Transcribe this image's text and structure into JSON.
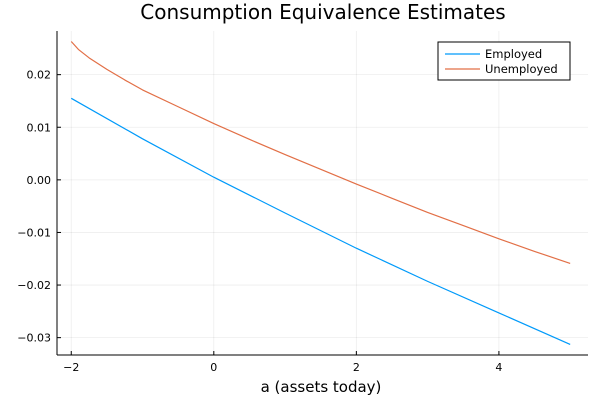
{
  "chart_data": {
    "type": "line",
    "title": "Consumption Equivalence Estimates",
    "xlabel": "a (assets today)",
    "ylabel": "",
    "xlim": [
      -2.2,
      5.25
    ],
    "ylim": [
      -0.0333,
      0.0283
    ],
    "xticks": [
      -2,
      0,
      2,
      4
    ],
    "xtick_labels": [
      "−2",
      "0",
      "2",
      "4"
    ],
    "yticks": [
      0.02,
      0.01,
      0.0,
      -0.01,
      -0.02,
      -0.03
    ],
    "ytick_labels": [
      "0.02",
      "0.01",
      "0.00",
      "−0.01",
      "−0.02",
      "−0.03"
    ],
    "grid": true,
    "legend_position": "top-right",
    "series": [
      {
        "name": "Employed",
        "color": "#009AFA",
        "x": [
          -2,
          -1,
          0,
          1,
          2,
          3,
          4,
          5
        ],
        "y": [
          0.0155,
          0.0078,
          0.0005,
          -0.0063,
          -0.013,
          -0.0193,
          -0.0253,
          -0.0313
        ]
      },
      {
        "name": "Unemployed",
        "color": "#E26F46",
        "x": [
          -2,
          -1.9,
          -1.75,
          -1.5,
          -1.25,
          -1,
          -0.5,
          0,
          0.5,
          1,
          1.5,
          2,
          2.5,
          3,
          3.5,
          4,
          4.5,
          5
        ],
        "y": [
          0.0263,
          0.0248,
          0.0232,
          0.021,
          0.019,
          0.0171,
          0.0139,
          0.0107,
          0.0077,
          0.0048,
          0.002,
          -0.0008,
          -0.0035,
          -0.0062,
          -0.0087,
          -0.0112,
          -0.0136,
          -0.0159
        ]
      }
    ]
  }
}
